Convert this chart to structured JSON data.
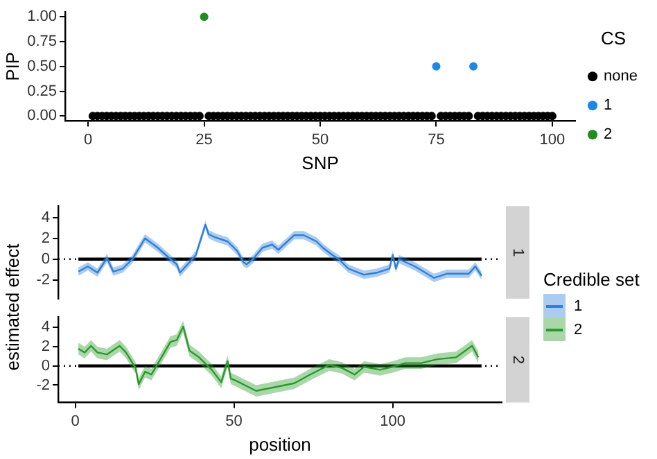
{
  "chart_data": [
    {
      "type": "scatter",
      "xlabel": "SNP",
      "ylabel": "PIP",
      "legend": "right",
      "legend_title": "CS",
      "marker": "circle",
      "grid": false,
      "xlim": [
        -4.95,
        104.95
      ],
      "ylim": [
        -0.05,
        1.05
      ],
      "xticks": [
        0,
        25,
        50,
        75,
        100
      ],
      "yticks": [
        {
          "value": 0,
          "label": "0.00"
        },
        {
          "value": 0.25,
          "label": "0.25"
        },
        {
          "value": 0.5,
          "label": "0.50"
        },
        {
          "value": 0.75,
          "label": "0.75"
        },
        {
          "value": 1,
          "label": "1.00"
        }
      ],
      "series": [
        {
          "name": "none",
          "color": "#000000",
          "x": [
            1,
            2,
            3,
            4,
            5,
            6,
            7,
            8,
            9,
            10,
            11,
            12,
            13,
            14,
            15,
            16,
            17,
            18,
            19,
            20,
            21,
            22,
            23,
            24,
            26,
            27,
            28,
            29,
            30,
            31,
            32,
            33,
            34,
            35,
            36,
            37,
            38,
            39,
            40,
            41,
            42,
            43,
            44,
            45,
            46,
            47,
            48,
            49,
            50,
            51,
            52,
            53,
            54,
            55,
            56,
            57,
            58,
            59,
            60,
            61,
            62,
            63,
            64,
            65,
            66,
            67,
            68,
            69,
            70,
            71,
            72,
            73,
            74,
            76,
            77,
            78,
            79,
            80,
            81,
            82,
            84,
            85,
            86,
            87,
            88,
            89,
            90,
            91,
            92,
            93,
            94,
            95,
            96,
            97,
            98,
            99,
            100
          ],
          "values": [
            0,
            0,
            0,
            0,
            0,
            0,
            0,
            0,
            0,
            0,
            0,
            0,
            0,
            0,
            0,
            0,
            0,
            0,
            0,
            0,
            0,
            0,
            0,
            0,
            0,
            0,
            0,
            0,
            0,
            0,
            0,
            0,
            0,
            0,
            0,
            0,
            0,
            0,
            0,
            0,
            0,
            0,
            0,
            0,
            0,
            0,
            0,
            0,
            0,
            0,
            0,
            0,
            0,
            0,
            0,
            0,
            0,
            0,
            0,
            0,
            0,
            0,
            0,
            0,
            0,
            0,
            0,
            0,
            0,
            0,
            0,
            0,
            0,
            0,
            0,
            0,
            0,
            0,
            0,
            0,
            0,
            0,
            0,
            0,
            0,
            0,
            0,
            0,
            0,
            0,
            0,
            0,
            0,
            0,
            0,
            0,
            0
          ]
        },
        {
          "name": "1",
          "color": "#1e88e5",
          "x": [
            75,
            83
          ],
          "values": [
            0.5,
            0.5
          ]
        },
        {
          "name": "2",
          "color": "#228b22",
          "x": [
            25
          ],
          "values": [
            1
          ]
        }
      ]
    },
    {
      "type": "line",
      "title": "1",
      "ylabel": "estimated effect",
      "legend": "right",
      "legend_title": "Credible set",
      "marker": "none",
      "grid": false,
      "tick_labels": "y",
      "xlim": [
        -5.35,
        134.35
      ],
      "ylim": [
        -3.8,
        5.1
      ],
      "yticks": [
        -2,
        0,
        2,
        4
      ],
      "ref_lines": [
        {
          "axis": "y",
          "value": 0,
          "line_style": "dotted",
          "color": "#000000"
        }
      ],
      "series": [
        {
          "color": "#000000",
          "x": [
            1,
            128
          ],
          "values": [
            0,
            0
          ]
        },
        {
          "name": "1",
          "color": "#2f80d8",
          "x": [
            1,
            4,
            7,
            10,
            12,
            15,
            18,
            22,
            26,
            30,
            32,
            33,
            36,
            38,
            41,
            42,
            44,
            48,
            51,
            53,
            54,
            56,
            59,
            62,
            64,
            69,
            72,
            76,
            78,
            81,
            83,
            86,
            91,
            95,
            99,
            100,
            101,
            102,
            107,
            113,
            117,
            124,
            126,
            128
          ],
          "values": [
            -1.2,
            -0.7,
            -1.3,
            0.1,
            -1.2,
            -0.9,
            0,
            2.0,
            1.1,
            0,
            -0.5,
            -1.3,
            -0.3,
            0.4,
            3.3,
            2.4,
            2.1,
            1.7,
            0.8,
            -0.3,
            -0.5,
            0,
            1.1,
            1.4,
            0.9,
            2.3,
            2.3,
            1.7,
            1.1,
            0.4,
            0,
            -0.9,
            -1.5,
            -1.3,
            -0.9,
            0.4,
            -0.9,
            0,
            -0.7,
            -1.8,
            -1.4,
            -1.4,
            -0.7,
            -1.6
          ],
          "lower": [
            -1.6,
            -1.1,
            -1.7,
            -0.3,
            -1.6,
            -1.3,
            -0.4,
            1.6,
            0.7,
            -0.4,
            -0.9,
            -1.7,
            -0.7,
            0,
            2.9,
            2.0,
            1.7,
            1.3,
            0.4,
            -0.7,
            -0.9,
            -0.4,
            0.7,
            1.0,
            0.5,
            1.9,
            1.9,
            1.3,
            0.7,
            0,
            -0.4,
            -1.3,
            -1.9,
            -1.7,
            -1.3,
            0,
            -1.3,
            -0.4,
            -1.1,
            -2.2,
            -1.8,
            -1.8,
            -1.1,
            -2.0
          ],
          "upper": [
            -0.8,
            -0.3,
            -0.9,
            0.5,
            -0.8,
            -0.5,
            0.4,
            2.4,
            1.5,
            0.4,
            -0.1,
            -0.9,
            0.1,
            0.8,
            3.7,
            2.8,
            2.5,
            2.1,
            1.2,
            0.1,
            -0.1,
            0.4,
            1.5,
            1.8,
            1.3,
            2.7,
            2.7,
            2.1,
            1.5,
            0.8,
            0.4,
            -0.5,
            -1.1,
            -0.9,
            -0.5,
            0.8,
            -0.5,
            0.4,
            -0.3,
            -1.4,
            -1.0,
            -1.0,
            -0.3,
            -1.2
          ]
        }
      ]
    },
    {
      "type": "line",
      "title": "2",
      "xlabel": "position",
      "legend": "right",
      "marker": "none",
      "grid": false,
      "xlim": [
        -5.35,
        134.35
      ],
      "ylim": [
        -3.8,
        5.1
      ],
      "xticks": [
        0,
        50,
        100
      ],
      "yticks": [
        -2,
        0,
        2,
        4
      ],
      "ref_lines": [
        {
          "axis": "y",
          "value": 0,
          "line_style": "dotted",
          "color": "#000000"
        }
      ],
      "series": [
        {
          "color": "#000000",
          "x": [
            1,
            128
          ],
          "values": [
            0,
            0
          ]
        },
        {
          "name": "2",
          "color": "#2a9a2a",
          "x": [
            1,
            3,
            5,
            7,
            10,
            14,
            16,
            19,
            20,
            22,
            24,
            30,
            32,
            34,
            36,
            39,
            43,
            46,
            48,
            49,
            51,
            57,
            63,
            69,
            74,
            80,
            84,
            88,
            91,
            96,
            100,
            104,
            109,
            114,
            120,
            125,
            127
          ],
          "values": [
            1.8,
            1.4,
            2.1,
            1.4,
            1.2,
            2.1,
            1.4,
            -0.2,
            -1.9,
            -0.6,
            -0.9,
            2.5,
            2.7,
            4.1,
            1.6,
            0.9,
            -0.4,
            -1.7,
            0.5,
            -1.3,
            -1.6,
            -2.6,
            -2.2,
            -1.8,
            -0.9,
            0.1,
            -0.2,
            -0.9,
            -0.1,
            -0.4,
            -0.1,
            0.3,
            0.3,
            0.7,
            0.9,
            2.1,
            0.9
          ],
          "lower": [
            1.2,
            0.8,
            1.5,
            0.8,
            0.6,
            1.5,
            0.8,
            -0.8,
            -2.5,
            -1.2,
            -1.5,
            1.9,
            2.1,
            3.5,
            1.0,
            0.3,
            -1.0,
            -2.3,
            -0.1,
            -1.9,
            -2.2,
            -3.2,
            -2.8,
            -2.4,
            -1.5,
            -0.5,
            -0.8,
            -1.5,
            -0.7,
            -1.0,
            -0.7,
            -0.3,
            -0.3,
            0.1,
            0.3,
            1.5,
            0.3
          ],
          "upper": [
            2.4,
            2.0,
            2.7,
            2.0,
            1.8,
            2.7,
            2.0,
            0.4,
            -1.3,
            0,
            -0.3,
            3.1,
            3.3,
            4.7,
            2.2,
            1.5,
            0.2,
            -1.1,
            1.1,
            -0.7,
            -1.0,
            -2.0,
            -1.6,
            -1.2,
            -0.3,
            0.7,
            0.4,
            -0.3,
            0.5,
            0.2,
            0.5,
            0.9,
            0.9,
            1.3,
            1.5,
            2.7,
            1.5
          ]
        }
      ]
    }
  ]
}
